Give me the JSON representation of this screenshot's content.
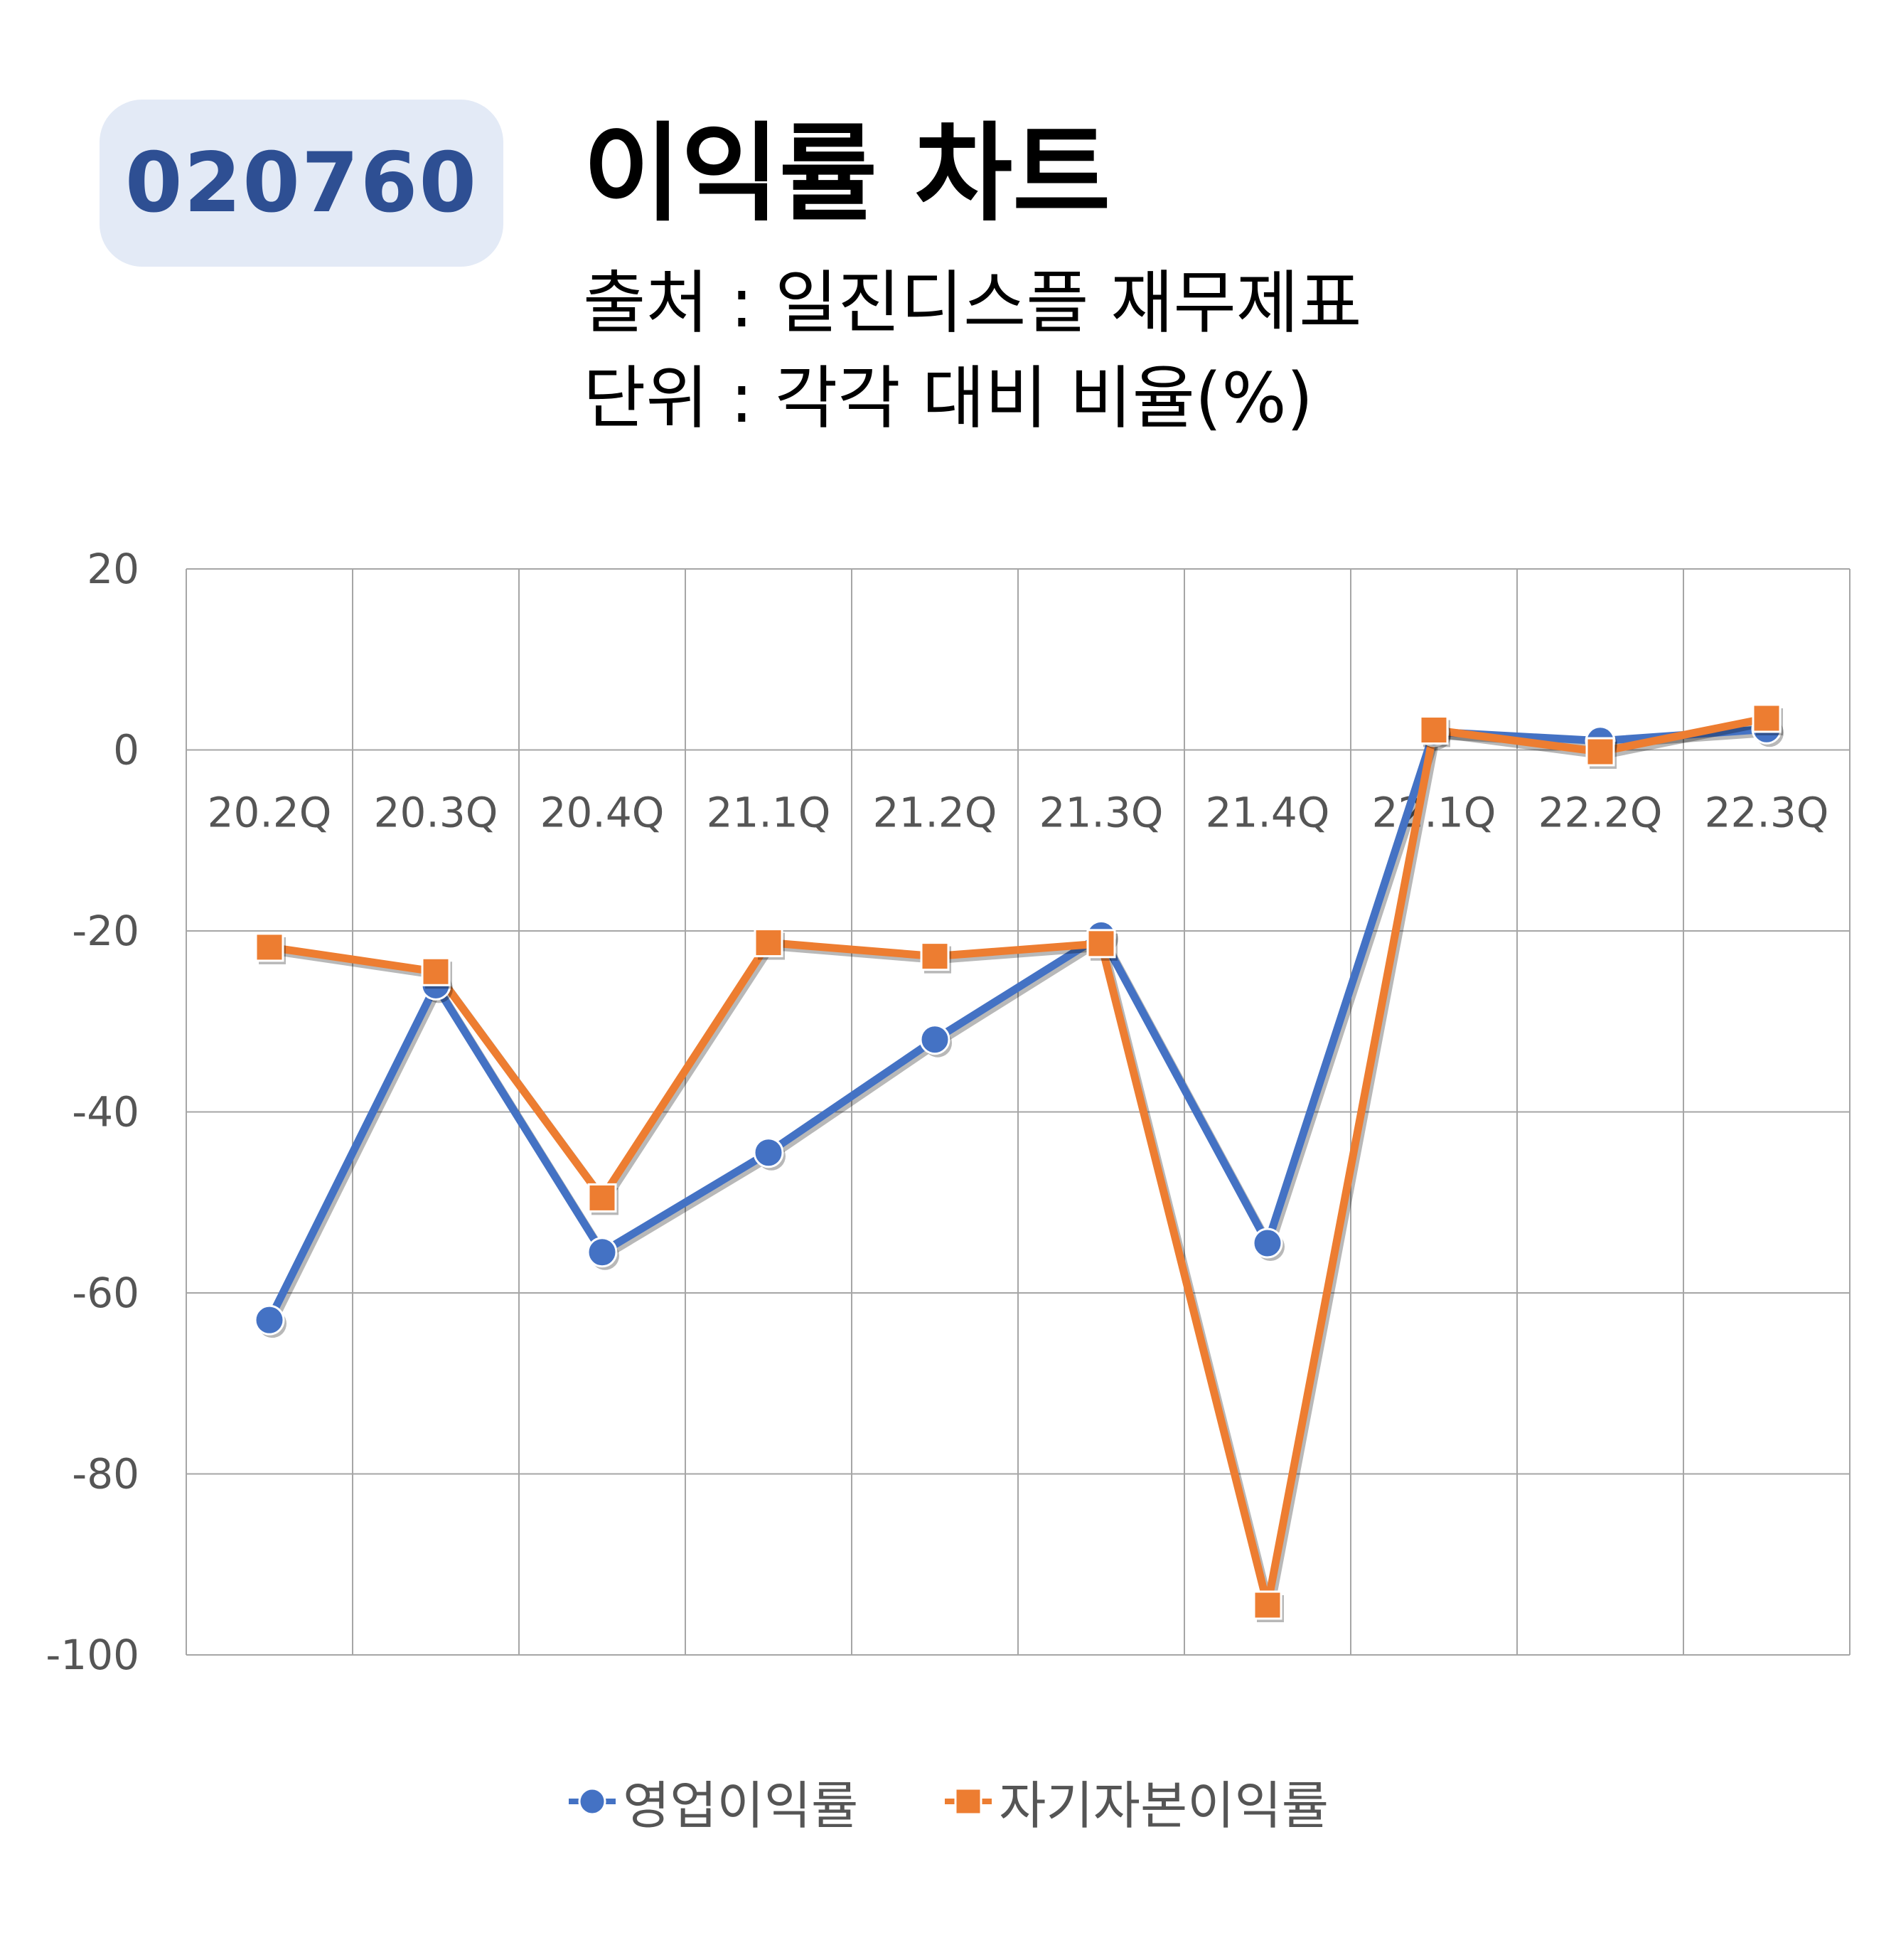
{
  "header": {
    "code": "020760",
    "title": "이익률 차트",
    "source": "출처 : 일진디스플 재무제표",
    "unit": "단위 : 각각 대비 비율(%)"
  },
  "colors": {
    "series1": "#4472c4",
    "series2": "#ed7d31",
    "badge_bg": "#e3eaf6",
    "badge_text": "#2e4f93",
    "grid": "#a6a6a6",
    "tick": "#555555"
  },
  "chart_data": {
    "type": "line",
    "categories": [
      "20.2Q",
      "20.3Q",
      "20.4Q",
      "21.1Q",
      "21.2Q",
      "21.3Q",
      "21.4Q",
      "22.1Q",
      "22.2Q",
      "22.3Q"
    ],
    "series": [
      {
        "name": "영업이익률",
        "marker": "circle",
        "values": [
          -63,
          -26,
          -55.5,
          -44.5,
          -32,
          -20.5,
          -54.5,
          2,
          1,
          2.3
        ]
      },
      {
        "name": "자기자본이익률",
        "marker": "square",
        "values": [
          -21.8,
          -24.5,
          -49.5,
          -21.3,
          -22.8,
          -21.4,
          -94.5,
          2.2,
          -0.2,
          3.5
        ]
      }
    ],
    "ylim": [
      -100,
      20
    ],
    "yticks": [
      "20",
      "0",
      "-20",
      "-40",
      "-60",
      "-80",
      "-100"
    ],
    "grid": true,
    "legend": "bottom"
  }
}
